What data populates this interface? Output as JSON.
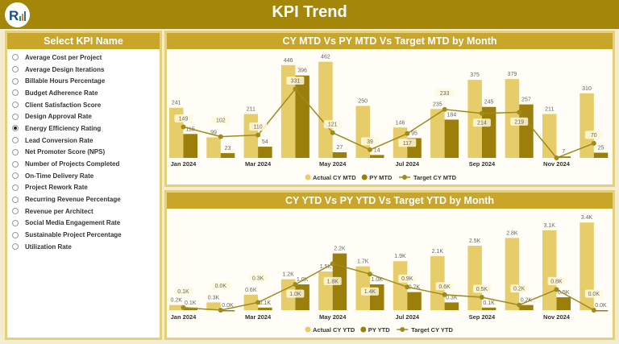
{
  "header": {
    "title": "KPI Trend"
  },
  "sidebar": {
    "title": "Select KPI Name",
    "selected": "Energy Efficiency Rating",
    "items": [
      "Average Cost per Project",
      "Average Design Iterations",
      "Billable Hours Percentage",
      "Budget Adherence Rate",
      "Client Satisfaction Score",
      "Design Approval Rate",
      "Energy Efficiency Rating",
      "Lead Conversion Rate",
      "Net Promoter Score (NPS)",
      "Number of Projects Completed",
      "On-Time Delivery Rate",
      "Project Rework Rate",
      "Recurring Revenue Percentage",
      "Revenue per Architect",
      "Social Media Engagement Rate",
      "Sustainable Project Percentage",
      "Utilization Rate"
    ]
  },
  "colors": {
    "header": "#a48708",
    "panel_header": "#c9a62a",
    "actual": "#e6cd6a",
    "py": "#9c7f0a",
    "target": "#a08a1c"
  },
  "chart_data": [
    {
      "type": "bar",
      "title": "CY MTD Vs PY MTD Vs Target MTD by Month",
      "categories": [
        "Jan 2024",
        "Feb 2024",
        "Mar 2024",
        "Apr 2024",
        "May 2024",
        "Jun 2024",
        "Jul 2024",
        "Aug 2024",
        "Sep 2024",
        "Oct 2024",
        "Nov 2024",
        "Dec 2024"
      ],
      "tick_labels": [
        "Jan 2024",
        "",
        "Mar 2024",
        "",
        "May 2024",
        "",
        "Jul 2024",
        "",
        "Sep 2024",
        "",
        "Nov 2024",
        ""
      ],
      "series": [
        {
          "name": "Actual CY MTD",
          "kind": "bar",
          "values": [
            241,
            99,
            211,
            446,
            462,
            250,
            146,
            235,
            375,
            379,
            211,
            310
          ]
        },
        {
          "name": "PY MTD",
          "kind": "bar",
          "values": [
            115,
            23,
            54,
            396,
            27,
            14,
            95,
            184,
            245,
            257,
            7,
            25
          ]
        },
        {
          "name": "Target CY MTD",
          "kind": "line",
          "values": [
            149,
            102,
            110,
            331,
            121,
            39,
            117,
            233,
            214,
            219,
            0,
            70
          ]
        }
      ],
      "ylim": [
        0,
        480
      ],
      "legend": "bottom-center",
      "unit": ""
    },
    {
      "type": "bar",
      "title": "CY YTD Vs PY YTD Vs Target YTD by Month",
      "categories": [
        "Jan 2024",
        "Feb 2024",
        "Mar 2024",
        "Apr 2024",
        "May 2024",
        "Jun 2024",
        "Jul 2024",
        "Aug 2024",
        "Sep 2024",
        "Oct 2024",
        "Nov 2024",
        "Dec 2024"
      ],
      "tick_labels": [
        "Jan 2024",
        "",
        "Mar 2024",
        "",
        "May 2024",
        "",
        "Jul 2024",
        "",
        "Sep 2024",
        "",
        "Nov 2024",
        ""
      ],
      "series": [
        {
          "name": "Actual CY YTD",
          "kind": "bar",
          "values": [
            0.2,
            0.3,
            0.6,
            1.2,
            1.5,
            1.7,
            1.9,
            2.1,
            2.5,
            2.8,
            3.1,
            3.4
          ]
        },
        {
          "name": "PY YTD",
          "kind": "bar",
          "values": [
            0.1,
            0.0,
            0.1,
            1.0,
            2.2,
            1.0,
            0.7,
            0.3,
            0.1,
            0.2,
            0.5,
            0.0
          ]
        },
        {
          "name": "Target CY YTD",
          "kind": "line",
          "values": [
            0.1,
            0.0,
            0.3,
            1.0,
            1.8,
            1.4,
            0.9,
            0.6,
            0.5,
            0.2,
            0.8,
            0.0
          ]
        }
      ],
      "ylim": [
        0,
        3.5
      ],
      "legend": "bottom-center",
      "unit": "K"
    }
  ]
}
